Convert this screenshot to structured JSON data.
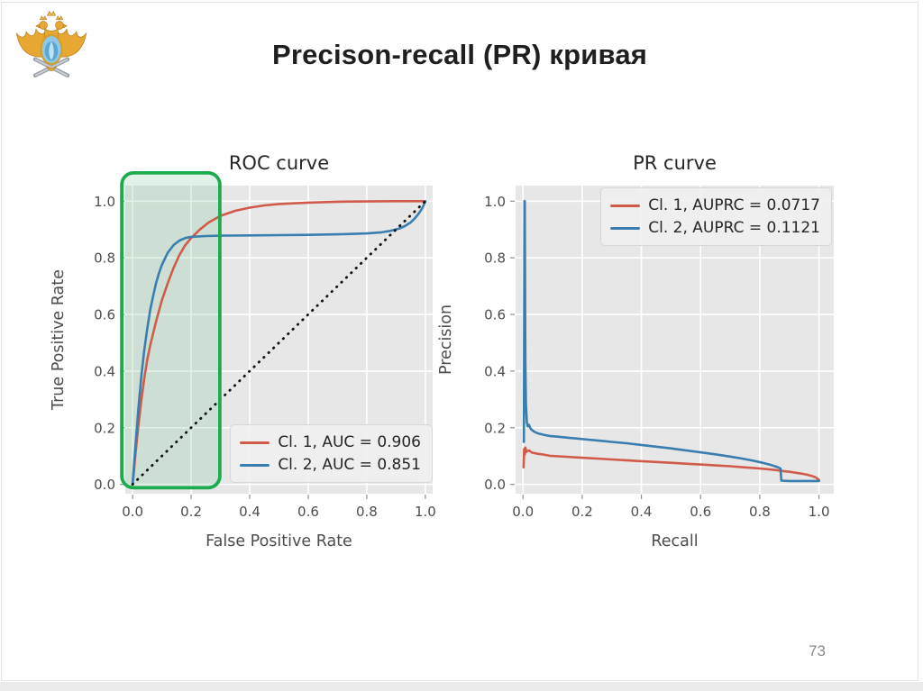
{
  "slide": {
    "title": "Precison-recall (PR) кривая",
    "page_number": "73",
    "logo": "double-headed-eagle-emblem"
  },
  "colors": {
    "class1": "#d15b4a",
    "class2": "#3a7eb0",
    "diagonal": "#111111",
    "plot_bg": "#e7e7e8",
    "grid": "#ffffff",
    "highlight_stroke": "#1dab50",
    "highlight_fill": "rgba(70,180,110,0.16)"
  },
  "chart_data": [
    {
      "id": "roc",
      "type": "line",
      "title": "ROC curve",
      "xlabel": "False Positive Rate",
      "ylabel": "True Positive Rate",
      "xlim": [
        -0.025,
        1.025
      ],
      "ylim": [
        -0.033,
        1.055
      ],
      "xticks": [
        "0.0",
        "0.2",
        "0.4",
        "0.6",
        "0.8",
        "1.0"
      ],
      "yticks": [
        "0.0",
        "0.2",
        "0.4",
        "0.6",
        "0.8",
        "1.0"
      ],
      "grid": true,
      "legend": {
        "position": "lower-right",
        "entries": [
          {
            "label": "Cl. 1, AUC = 0.906",
            "color": "#d15b4a"
          },
          {
            "label": "Cl. 2, AUC = 0.851",
            "color": "#3a7eb0"
          }
        ]
      },
      "highlight_rect": {
        "x0": -0.037,
        "y0": -0.012,
        "x1": 0.298,
        "y1": 1.1
      },
      "series": [
        {
          "name": "Cl. 1",
          "auc": 0.906,
          "color": "#d15b4a",
          "style": "solid",
          "points": [
            [
              0,
              0
            ],
            [
              0.005,
              0.05
            ],
            [
              0.01,
              0.11
            ],
            [
              0.02,
              0.21
            ],
            [
              0.03,
              0.3
            ],
            [
              0.04,
              0.375
            ],
            [
              0.05,
              0.44
            ],
            [
              0.06,
              0.49
            ],
            [
              0.08,
              0.575
            ],
            [
              0.1,
              0.65
            ],
            [
              0.12,
              0.71
            ],
            [
              0.14,
              0.765
            ],
            [
              0.16,
              0.81
            ],
            [
              0.18,
              0.845
            ],
            [
              0.2,
              0.87
            ],
            [
              0.23,
              0.9
            ],
            [
              0.26,
              0.925
            ],
            [
              0.3,
              0.948
            ],
            [
              0.35,
              0.966
            ],
            [
              0.4,
              0.977
            ],
            [
              0.45,
              0.985
            ],
            [
              0.5,
              0.99
            ],
            [
              0.6,
              0.995
            ],
            [
              0.7,
              0.998
            ],
            [
              0.8,
              0.999
            ],
            [
              0.9,
              1.0
            ],
            [
              1.0,
              1.0
            ]
          ]
        },
        {
          "name": "Cl. 2",
          "auc": 0.851,
          "color": "#3a7eb0",
          "style": "solid",
          "points": [
            [
              0,
              0
            ],
            [
              0.005,
              0.07
            ],
            [
              0.01,
              0.14
            ],
            [
              0.02,
              0.27
            ],
            [
              0.03,
              0.385
            ],
            [
              0.04,
              0.475
            ],
            [
              0.05,
              0.55
            ],
            [
              0.06,
              0.615
            ],
            [
              0.07,
              0.665
            ],
            [
              0.08,
              0.71
            ],
            [
              0.09,
              0.745
            ],
            [
              0.1,
              0.775
            ],
            [
              0.12,
              0.818
            ],
            [
              0.14,
              0.845
            ],
            [
              0.16,
              0.861
            ],
            [
              0.18,
              0.87
            ],
            [
              0.2,
              0.874
            ],
            [
              0.25,
              0.877
            ],
            [
              0.3,
              0.878
            ],
            [
              0.4,
              0.879
            ],
            [
              0.5,
              0.88
            ],
            [
              0.6,
              0.881
            ],
            [
              0.7,
              0.883
            ],
            [
              0.8,
              0.886
            ],
            [
              0.85,
              0.89
            ],
            [
              0.88,
              0.895
            ],
            [
              0.91,
              0.903
            ],
            [
              0.93,
              0.912
            ],
            [
              0.95,
              0.925
            ],
            [
              0.965,
              0.94
            ],
            [
              0.978,
              0.957
            ],
            [
              0.988,
              0.973
            ],
            [
              0.995,
              0.987
            ],
            [
              1.0,
              1.0
            ]
          ]
        },
        {
          "name": "chance",
          "color": "#111111",
          "style": "dotted",
          "points": [
            [
              0,
              0
            ],
            [
              1,
              1
            ]
          ]
        }
      ]
    },
    {
      "id": "pr",
      "type": "line",
      "title": "PR curve",
      "xlabel": "Recall",
      "ylabel": "Precision",
      "xlim": [
        -0.025,
        1.05
      ],
      "ylim": [
        -0.033,
        1.055
      ],
      "xticks": [
        "0.0",
        "0.2",
        "0.4",
        "0.6",
        "0.8",
        "1.0"
      ],
      "yticks": [
        "0.0",
        "0.2",
        "0.4",
        "0.6",
        "0.8",
        "1.0"
      ],
      "grid": true,
      "legend": {
        "position": "upper-right",
        "entries": [
          {
            "label": "Cl. 1, AUPRC = 0.0717",
            "color": "#d15b4a"
          },
          {
            "label": "Cl. 2, AUPRC = 0.1121",
            "color": "#3a7eb0"
          }
        ]
      },
      "series": [
        {
          "name": "Cl. 1",
          "auprc": 0.0717,
          "color": "#d15b4a",
          "style": "solid",
          "points": [
            [
              0.002,
              0.06
            ],
            [
              0.004,
              0.125
            ],
            [
              0.006,
              0.105
            ],
            [
              0.008,
              0.13
            ],
            [
              0.012,
              0.115
            ],
            [
              0.02,
              0.12
            ],
            [
              0.03,
              0.112
            ],
            [
              0.05,
              0.108
            ],
            [
              0.07,
              0.105
            ],
            [
              0.09,
              0.101
            ],
            [
              0.12,
              0.099
            ],
            [
              0.15,
              0.097
            ],
            [
              0.2,
              0.094
            ],
            [
              0.25,
              0.091
            ],
            [
              0.3,
              0.088
            ],
            [
              0.35,
              0.085
            ],
            [
              0.4,
              0.082
            ],
            [
              0.45,
              0.079
            ],
            [
              0.5,
              0.076
            ],
            [
              0.55,
              0.073
            ],
            [
              0.6,
              0.07
            ],
            [
              0.65,
              0.067
            ],
            [
              0.7,
              0.064
            ],
            [
              0.75,
              0.06
            ],
            [
              0.8,
              0.056
            ],
            [
              0.85,
              0.051
            ],
            [
              0.88,
              0.047
            ],
            [
              0.91,
              0.043
            ],
            [
              0.94,
              0.038
            ],
            [
              0.96,
              0.034
            ],
            [
              0.98,
              0.028
            ],
            [
              0.99,
              0.024
            ],
            [
              1.0,
              0.016
            ]
          ]
        },
        {
          "name": "Cl. 2",
          "auprc": 0.1121,
          "color": "#3a7eb0",
          "style": "solid",
          "points": [
            [
              0.003,
              0.15
            ],
            [
              0.004,
              0.55
            ],
            [
              0.005,
              1.0
            ],
            [
              0.006,
              1.0
            ],
            [
              0.007,
              0.75
            ],
            [
              0.008,
              0.45
            ],
            [
              0.01,
              0.28
            ],
            [
              0.013,
              0.22
            ],
            [
              0.016,
              0.205
            ],
            [
              0.02,
              0.21
            ],
            [
              0.025,
              0.198
            ],
            [
              0.03,
              0.192
            ],
            [
              0.04,
              0.185
            ],
            [
              0.05,
              0.18
            ],
            [
              0.07,
              0.175
            ],
            [
              0.09,
              0.171
            ],
            [
              0.12,
              0.168
            ],
            [
              0.15,
              0.165
            ],
            [
              0.18,
              0.162
            ],
            [
              0.22,
              0.158
            ],
            [
              0.26,
              0.154
            ],
            [
              0.3,
              0.15
            ],
            [
              0.35,
              0.145
            ],
            [
              0.4,
              0.139
            ],
            [
              0.45,
              0.133
            ],
            [
              0.5,
              0.127
            ],
            [
              0.55,
              0.12
            ],
            [
              0.6,
              0.113
            ],
            [
              0.65,
              0.106
            ],
            [
              0.7,
              0.098
            ],
            [
              0.74,
              0.091
            ],
            [
              0.78,
              0.083
            ],
            [
              0.81,
              0.076
            ],
            [
              0.84,
              0.068
            ],
            [
              0.86,
              0.061
            ],
            [
              0.87,
              0.056
            ],
            [
              0.873,
              0.013
            ],
            [
              0.9,
              0.012
            ],
            [
              0.95,
              0.012
            ],
            [
              1.0,
              0.012
            ]
          ]
        }
      ]
    }
  ]
}
